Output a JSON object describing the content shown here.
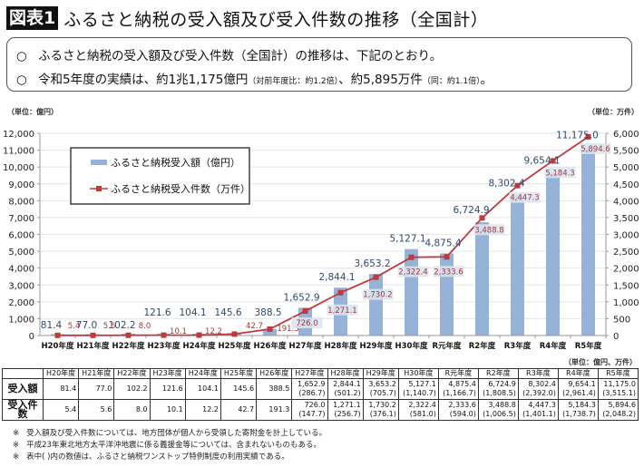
{
  "header": {
    "badge": "図表1",
    "title": "ふるさと納税の受入額及び受入件数の推移（全国計）"
  },
  "summary": {
    "bullet": "○",
    "line1": "ふるさと納税の受入額及び受入件数（全国計）の推移は、下記のとおり。",
    "line2_main": "令和5年度の実績は、約1兆1,175億円",
    "line2_note1": "（対前年度比：約1.2倍）",
    "line2_mid": "、約5,895万件",
    "line2_note2": "（同：約1.1倍）",
    "line2_end": "。"
  },
  "chart_data": {
    "type": "bar+line",
    "categories": [
      "H20年度",
      "H21年度",
      "H22年度",
      "H23年度",
      "H24年度",
      "H25年度",
      "H26年度",
      "H27年度",
      "H28年度",
      "H29年度",
      "H30年度",
      "R元年度",
      "R2年度",
      "R3年度",
      "R4年度",
      "R5年度"
    ],
    "series": [
      {
        "name": "ふるさと納税受入額（億円）",
        "type": "bar",
        "axis": "left",
        "color": "#95b3d7",
        "values": [
          81.4,
          77.0,
          102.2,
          121.6,
          104.1,
          145.6,
          388.5,
          1652.9,
          2844.1,
          3653.2,
          5127.1,
          4875.4,
          6724.9,
          8302.4,
          9654.1,
          11175.0
        ],
        "labels": [
          "81.4",
          "77.0",
          "102.2",
          "121.6",
          "104.1",
          "145.6",
          "388.5",
          "1,652.9",
          "2,844.1",
          "3,653.2",
          "5,127.1",
          "4,875.4",
          "6,724.9",
          "8,302.4",
          "9,654.1",
          "11,175.0"
        ]
      },
      {
        "name": "ふるさと納税受入件数（万件）",
        "type": "line",
        "axis": "right",
        "color": "#c0393b",
        "values": [
          5.4,
          5.6,
          8.0,
          10.1,
          12.2,
          42.7,
          191.3,
          726.0,
          1271.1,
          1730.2,
          2322.4,
          2333.6,
          3488.8,
          4447.3,
          5184.3,
          5894.6
        ],
        "labels": [
          "5.4",
          "5.6",
          "8.0",
          "10.1",
          "12.2",
          "42.7",
          "191.3",
          "726.0",
          "1,271.1",
          "1,730.2",
          "2,322.4",
          "2,333.6",
          "3,488.8",
          "4,447.3",
          "5,184.3",
          "5,894.6"
        ]
      }
    ],
    "left_axis": {
      "unit_label": "（単位：億円）",
      "ylim": [
        0,
        12000
      ],
      "ticks": [
        "0",
        "1,000",
        "2,000",
        "3,000",
        "4,000",
        "5,000",
        "6,000",
        "7,000",
        "8,000",
        "9,000",
        "10,000",
        "11,000",
        "12,000"
      ]
    },
    "right_axis": {
      "unit_label": "（単位：万件）",
      "ylim": [
        0,
        6000
      ],
      "ticks": [
        "0",
        "500",
        "1,000",
        "1,500",
        "2,000",
        "2,500",
        "3,000",
        "3,500",
        "4,000",
        "4,500",
        "5,000",
        "5,500",
        "6,000"
      ]
    },
    "legend": {
      "placement": "top-left"
    },
    "grid": true
  },
  "table": {
    "unit_label": "（単位：億円、万件）",
    "headers": [
      "H20年度",
      "H21年度",
      "H22年度",
      "H23年度",
      "H24年度",
      "H25年度",
      "H26年度",
      "H27年度",
      "H28年度",
      "H29年度",
      "H30年度",
      "R元年度",
      "R2年度",
      "R3年度",
      "R4年度",
      "R5年度"
    ],
    "rows": [
      {
        "label": "受入額",
        "values": [
          "81.4",
          "77.0",
          "102.2",
          "121.6",
          "104.1",
          "145.6",
          "388.5",
          "1,652.9",
          "2,844.1",
          "3,653.2",
          "5,127.1",
          "4,875.4",
          "6,724.9",
          "8,302.4",
          "9,654.1",
          "11,175.0"
        ],
        "sub": [
          "",
          "",
          "",
          "",
          "",
          "",
          "",
          "(286.7)",
          "(501.2)",
          "(705.7)",
          "(1,140.7)",
          "(1,166.7)",
          "(1,808.5)",
          "(2,392.0)",
          "(2,961.4)",
          "(3,515.1)"
        ]
      },
      {
        "label": "受入件数",
        "values": [
          "5.4",
          "5.6",
          "8.0",
          "10.1",
          "12.2",
          "42.7",
          "191.3",
          "726.0",
          "1,271.1",
          "1,730.2",
          "2,322.4",
          "2,333.6",
          "3,488.8",
          "4,447.3",
          "5,184.3",
          "5,894.6"
        ],
        "sub": [
          "",
          "",
          "",
          "",
          "",
          "",
          "",
          "(147.7)",
          "(256.7)",
          "(376.1)",
          "(581.0)",
          "(594.0)",
          "(1,006.5)",
          "(1,401.1)",
          "(1,738.7)",
          "(2,048.2)"
        ]
      }
    ]
  },
  "notes": {
    "mark": "※",
    "items": [
      "受入額及び受入件数については、地方団体が個人から受領した寄附金を計上している。",
      "平成23年東北地方太平洋沖地震に係る義援金等については、含まれないものもある。",
      "表中( )内の数値は、ふるさと納税ワンストップ特例制度の利用実績である。"
    ]
  }
}
